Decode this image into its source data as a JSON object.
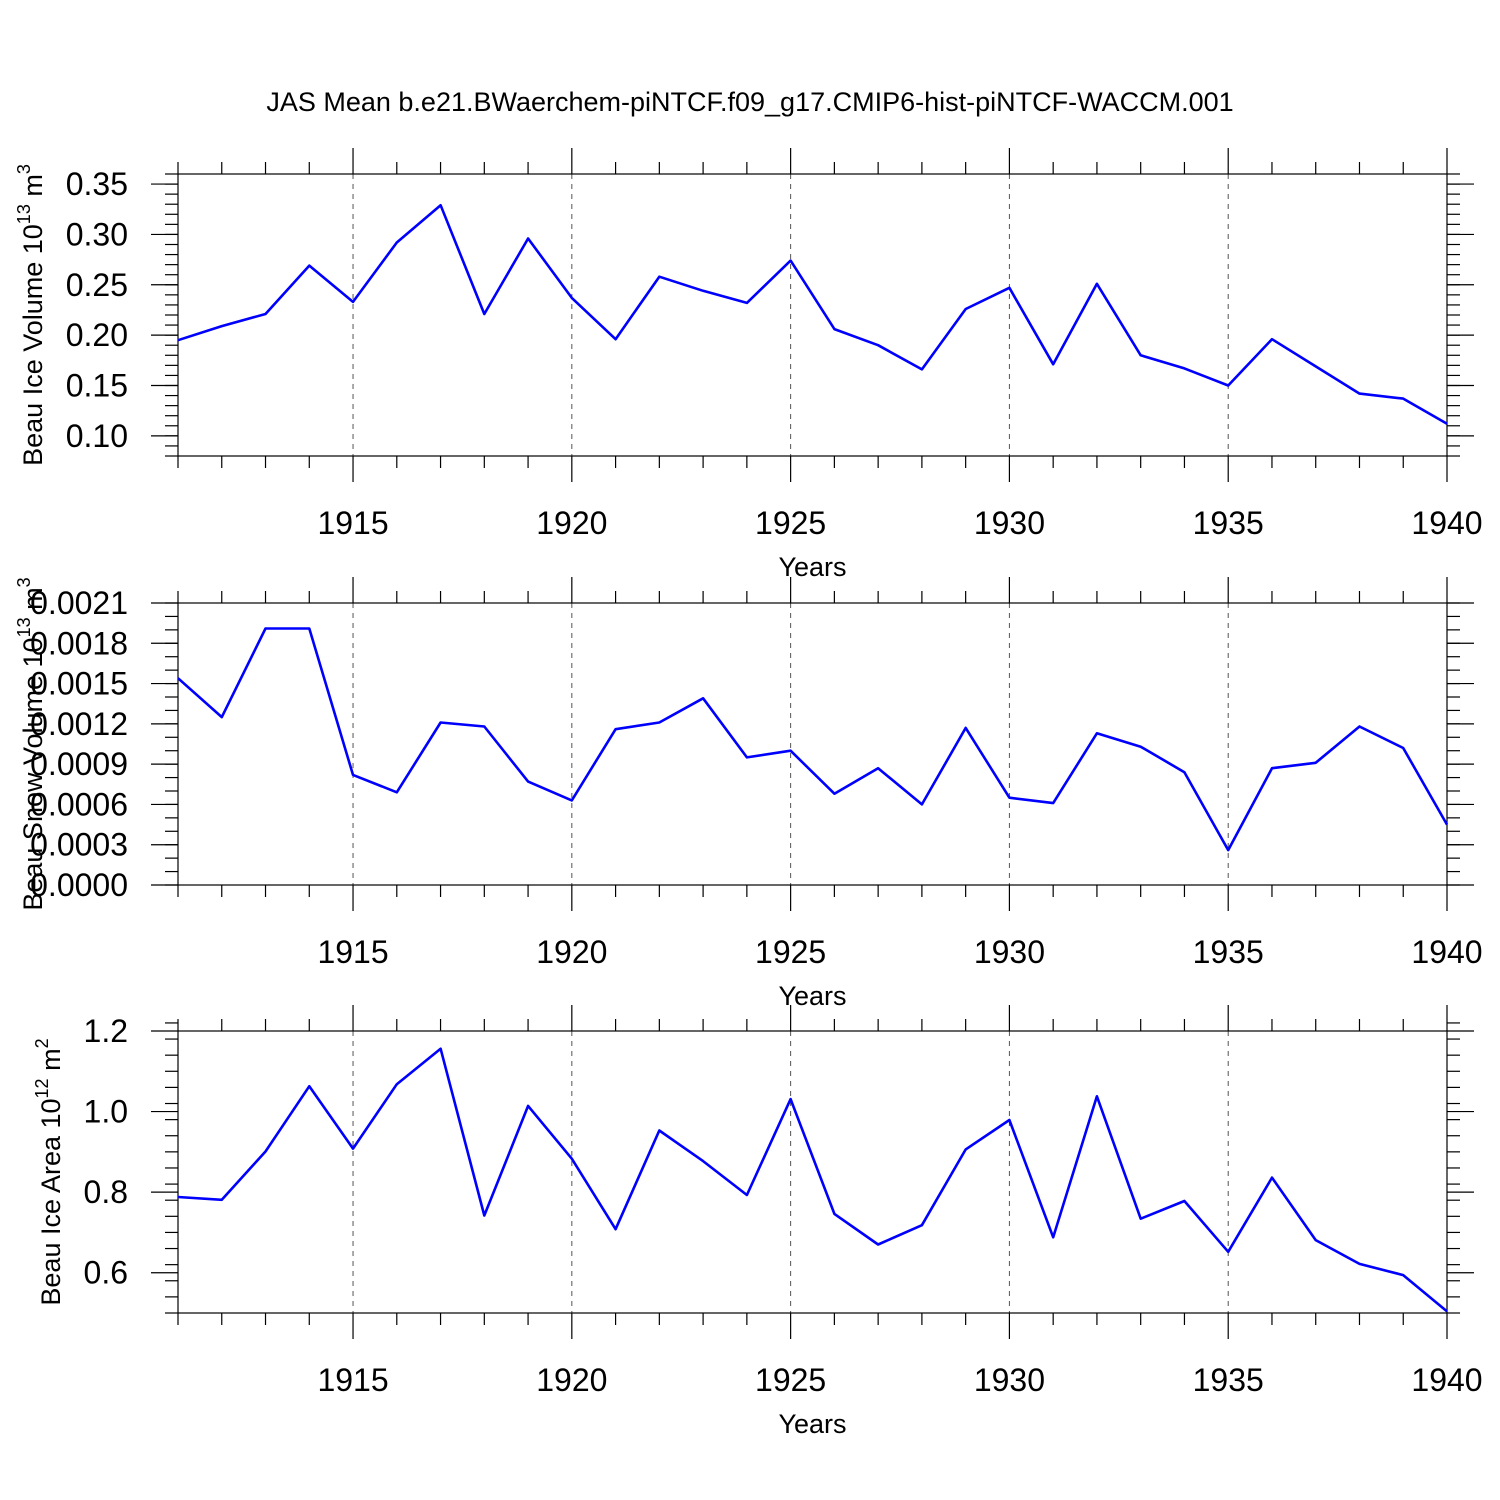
{
  "title": "JAS Mean b.e21.BWaerchem-piNTCF.f09_g17.CMIP6-hist-piNTCF-WACCM.001",
  "colors": {
    "series": "#0000ff",
    "grid": "#555555",
    "axis": "#000000"
  },
  "chart_data": [
    {
      "type": "line",
      "xlabel": "Years",
      "ylabel_main": "Beau Ice Volume 10",
      "ylabel_sup1": "13",
      "ylabel_mid": " m",
      "ylabel_sup2": "3",
      "xlim": [
        1911,
        1940
      ],
      "ylim": [
        0.08,
        0.36
      ],
      "grid": "vertical dashed at major x ticks",
      "x_ticks": [
        "1915",
        "1920",
        "1925",
        "1930",
        "1935",
        "1940"
      ],
      "y_ticks": [
        "0.35",
        "0.30",
        "0.25",
        "0.20",
        "0.15",
        "0.10"
      ],
      "x": [
        1911,
        1912,
        1913,
        1914,
        1915,
        1916,
        1917,
        1918,
        1919,
        1920,
        1921,
        1922,
        1923,
        1924,
        1925,
        1926,
        1927,
        1928,
        1929,
        1930,
        1931,
        1932,
        1933,
        1934,
        1935,
        1936,
        1937,
        1938,
        1939,
        1940
      ],
      "values": [
        0.195,
        0.209,
        0.221,
        0.269,
        0.233,
        0.292,
        0.329,
        0.221,
        0.296,
        0.237,
        0.196,
        0.258,
        0.244,
        0.232,
        0.274,
        0.206,
        0.19,
        0.166,
        0.226,
        0.247,
        0.171,
        0.251,
        0.18,
        0.167,
        0.15,
        0.196,
        0.169,
        0.142,
        0.137,
        0.112
      ]
    },
    {
      "type": "line",
      "xlabel": "Years",
      "ylabel_main": "Beau Snow Volume 10",
      "ylabel_sup1": "13",
      "ylabel_mid": " m",
      "ylabel_sup2": "3",
      "xlim": [
        1911,
        1940
      ],
      "ylim": [
        0.0,
        0.0021
      ],
      "grid": "vertical dashed at major x ticks",
      "x_ticks": [
        "1915",
        "1920",
        "1925",
        "1930",
        "1935",
        "1940"
      ],
      "y_ticks": [
        "0.0021",
        "0.0018",
        "0.0015",
        "0.0012",
        "0.0009",
        "0.0006",
        "0.0003",
        "0.0000"
      ],
      "x": [
        1911,
        1912,
        1913,
        1914,
        1915,
        1916,
        1917,
        1918,
        1919,
        1920,
        1921,
        1922,
        1923,
        1924,
        1925,
        1926,
        1927,
        1928,
        1929,
        1930,
        1931,
        1932,
        1933,
        1934,
        1935,
        1936,
        1937,
        1938,
        1939,
        1940
      ],
      "values": [
        0.00154,
        0.00125,
        0.00191,
        0.00191,
        0.00082,
        0.00069,
        0.00121,
        0.00118,
        0.00077,
        0.00063,
        0.00116,
        0.00121,
        0.00139,
        0.00095,
        0.001,
        0.00068,
        0.00087,
        0.0006,
        0.00117,
        0.00065,
        0.00061,
        0.00113,
        0.00103,
        0.00084,
        0.00026,
        0.00087,
        0.00091,
        0.00118,
        0.00102,
        0.00045
      ]
    },
    {
      "type": "line",
      "xlabel": "Years",
      "ylabel_main": "Beau Ice Area 10",
      "ylabel_sup1": "12",
      "ylabel_mid": " m",
      "ylabel_sup2": "2",
      "xlim": [
        1911,
        1940
      ],
      "ylim": [
        0.5,
        1.2
      ],
      "grid": "vertical dashed at major x ticks",
      "x_ticks": [
        "1915",
        "1920",
        "1925",
        "1930",
        "1935",
        "1940"
      ],
      "y_ticks": [
        "1.2",
        "1.0",
        "0.8",
        "0.6"
      ],
      "x": [
        1911,
        1912,
        1913,
        1914,
        1915,
        1916,
        1917,
        1918,
        1919,
        1920,
        1921,
        1922,
        1923,
        1924,
        1925,
        1926,
        1927,
        1928,
        1929,
        1930,
        1931,
        1932,
        1933,
        1934,
        1935,
        1936,
        1937,
        1938,
        1939,
        1940
      ],
      "values": [
        0.788,
        0.781,
        0.901,
        1.063,
        0.908,
        1.068,
        1.156,
        0.742,
        1.014,
        0.883,
        0.708,
        0.953,
        0.877,
        0.793,
        1.031,
        0.746,
        0.67,
        0.718,
        0.906,
        0.979,
        0.688,
        1.038,
        0.734,
        0.778,
        0.652,
        0.836,
        0.681,
        0.622,
        0.594,
        0.504
      ]
    }
  ]
}
